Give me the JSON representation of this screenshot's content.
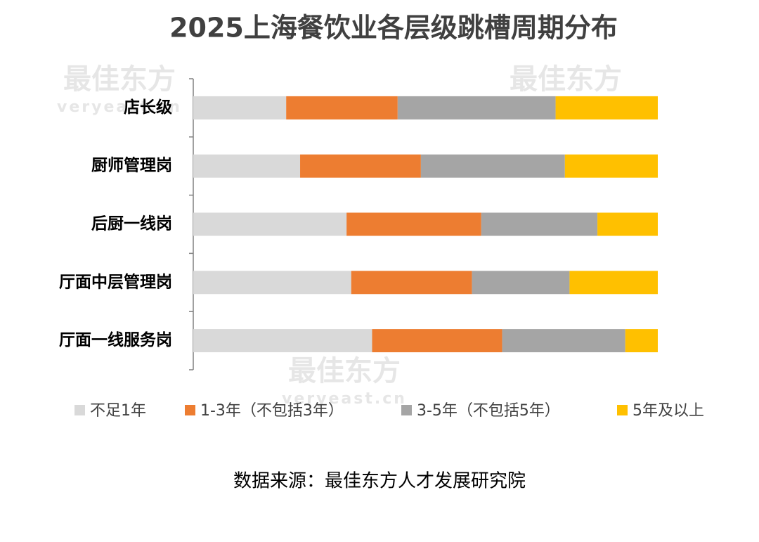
{
  "chart_data": {
    "type": "stacked-bar-horizontal",
    "title": "2025上海餐饮业各层级跳槽周期分布",
    "categories": [
      "店长级",
      "厨师管理岗",
      "后厨一线岗",
      "厅面中层管理岗",
      "厅面一线服务岗"
    ],
    "series": [
      {
        "name": "不足1年",
        "color": "#d9d9d9",
        "values": [
          20,
          23,
          33,
          34,
          38.5
        ]
      },
      {
        "name": "1-3年（不包括3年）",
        "color": "#ed7d31",
        "values": [
          24,
          26,
          29,
          26,
          28
        ]
      },
      {
        "name": "3-5年（不包括5年）",
        "color": "#a5a5a5",
        "values": [
          34,
          31,
          25,
          21,
          26.5
        ]
      },
      {
        "name": "5年及以上",
        "color": "#ffc000",
        "values": [
          22,
          20,
          13,
          19,
          7
        ]
      }
    ],
    "source": "数据来源：最佳东方人才发展研究院",
    "watermarks": [
      "最佳东方",
      "veryeast.cn"
    ]
  }
}
